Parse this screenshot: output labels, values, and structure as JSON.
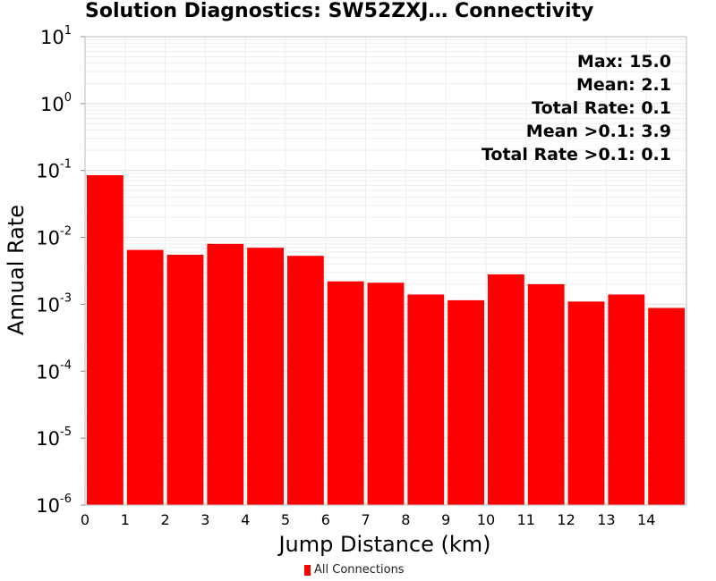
{
  "title": "Solution Diagnostics: SW52ZXJ… Connectivity",
  "chart_data": {
    "type": "bar",
    "title": "Solution Diagnostics: SW52ZXJ… Connectivity",
    "xlabel": "Jump Distance (km)",
    "ylabel": "Annual Rate",
    "y_scale": "log",
    "ylim": [
      1e-06,
      10
    ],
    "xlim": [
      0,
      15
    ],
    "x_ticks": [
      "0",
      "1",
      "2",
      "3",
      "4",
      "5",
      "6",
      "7",
      "8",
      "9",
      "10",
      "11",
      "12",
      "13",
      "14"
    ],
    "y_ticks": [
      {
        "base": "10",
        "exp": "1"
      },
      {
        "base": "10",
        "exp": "0"
      },
      {
        "base": "10",
        "exp": "-1"
      },
      {
        "base": "10",
        "exp": "-2"
      },
      {
        "base": "10",
        "exp": "-3"
      },
      {
        "base": "10",
        "exp": "-4"
      },
      {
        "base": "10",
        "exp": "-5"
      },
      {
        "base": "10",
        "exp": "-6"
      }
    ],
    "bin_width": 1,
    "series": [
      {
        "name": "All Connections",
        "color": "#ff0000",
        "x": [
          0,
          1,
          2,
          3,
          4,
          5,
          6,
          7,
          8,
          9,
          10,
          11,
          12,
          13,
          14
        ],
        "values": [
          0.085,
          0.0065,
          0.0055,
          0.008,
          0.007,
          0.0053,
          0.0022,
          0.0021,
          0.0014,
          0.00115,
          0.0028,
          0.002,
          0.0011,
          0.0014,
          0.00088
        ]
      }
    ],
    "annotations": [
      "Max: 15.0",
      "Mean: 2.1",
      "Total Rate: 0.1",
      "Mean >0.1: 3.9",
      "Total Rate >0.1: 0.1"
    ],
    "grid": true,
    "legend": {
      "position": "bottom",
      "label": "All Connections"
    }
  }
}
